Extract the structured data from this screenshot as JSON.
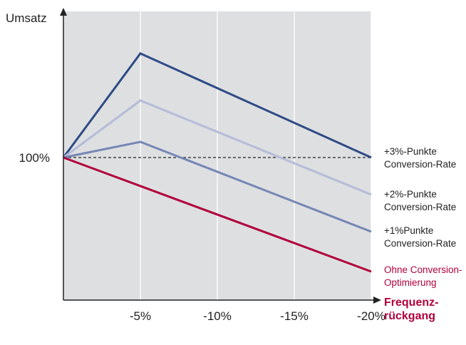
{
  "chart_data": {
    "type": "line",
    "ylabel": "Umsatz",
    "xlabel_lines": [
      "Frequenz-",
      "rückgang"
    ],
    "x": [
      0,
      -5,
      -10,
      -15,
      -20
    ],
    "x_tick_labels": [
      "-5%",
      "-10%",
      "-15%",
      "-20%"
    ],
    "xlim": [
      0,
      -20
    ],
    "y_tick_label": "100%",
    "reference_line": {
      "y": 100,
      "style": "dashed"
    },
    "series": [
      {
        "name_lines": [
          "+3%-Punkte",
          "Conversion-Rate"
        ],
        "x": [
          0,
          -5,
          -20
        ],
        "values": [
          100,
          173,
          100
        ],
        "color": "#2e4a85"
      },
      {
        "name_lines": [
          "+2%-Punkte",
          "Conversion-Rate"
        ],
        "x": [
          0,
          -5,
          -20
        ],
        "values": [
          100,
          140,
          74
        ],
        "color": "#b4bcd8"
      },
      {
        "name_lines": [
          "+1%Punkte",
          "Conversion-Rate"
        ],
        "x": [
          0,
          -5,
          -20
        ],
        "values": [
          100,
          111,
          48
        ],
        "color": "#7486b4"
      },
      {
        "name_lines": [
          "Ohne Conversion-",
          "Optimierung"
        ],
        "x": [
          0,
          -20
        ],
        "values": [
          100,
          20
        ],
        "color": "#b0003a",
        "label_color": "#b0003a"
      }
    ],
    "colors": {
      "plot_bg": "#dedfe1",
      "grid": "#ffffff",
      "axis": "#222222",
      "xlabel": "#b0003a"
    }
  }
}
